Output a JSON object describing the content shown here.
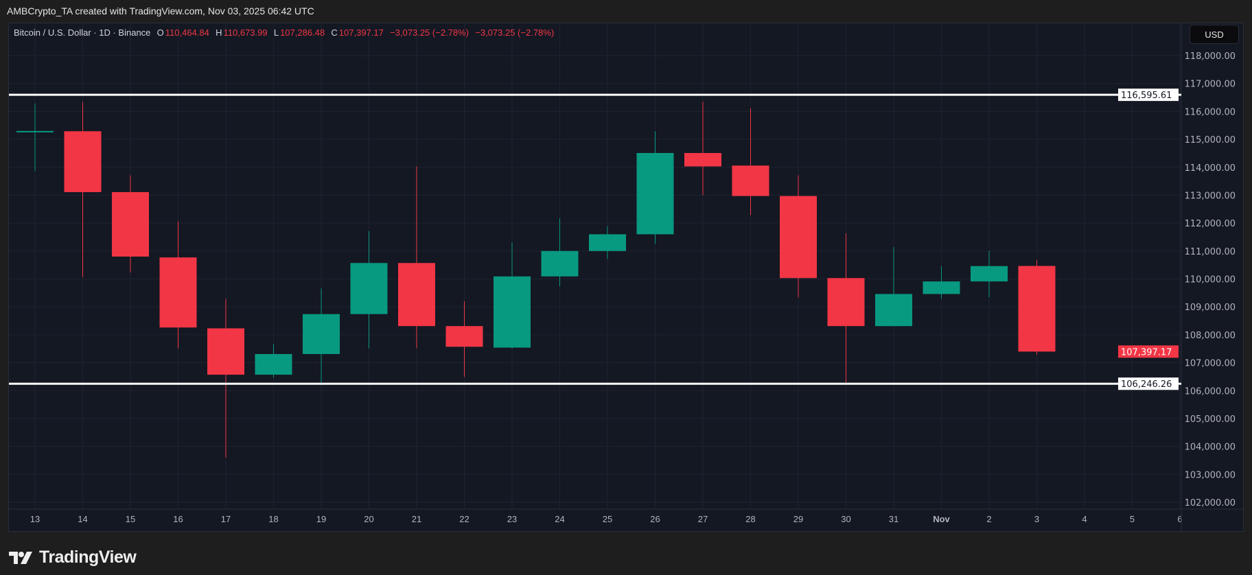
{
  "credit": "AMBCrypto_TA created with TradingView.com, Nov 03, 2025 06:42 UTC",
  "legend": {
    "symbol": "Bitcoin / U.S. Dollar · 1D · Binance",
    "o_label": "O",
    "o": "110,464.84",
    "h_label": "H",
    "h": "110,673.99",
    "l_label": "L",
    "l": "107,286.48",
    "c_label": "C",
    "c": "107,397.17",
    "change1": "−3,073.25 (−2.78%)",
    "change2": "−3,073.25 (−2.78%)"
  },
  "currency_button": "USD",
  "brand": "TradingView",
  "colors": {
    "up": "#089981",
    "down": "#f23645",
    "background": "#141823",
    "grid": "#1f2330",
    "level_line": "#ffffff"
  },
  "chart_data": {
    "type": "candlestick",
    "ylim": [
      102000,
      118000
    ],
    "y_ticks": [
      "118,000.00",
      "117,000.00",
      "116,000.00",
      "115,000.00",
      "114,000.00",
      "113,000.00",
      "112,000.00",
      "111,000.00",
      "110,000.00",
      "109,000.00",
      "108,000.00",
      "107,000.00",
      "106,000.00",
      "105,000.00",
      "104,000.00",
      "103,000.00",
      "102,000.00"
    ],
    "x_ticks": [
      "13",
      "14",
      "15",
      "16",
      "17",
      "18",
      "19",
      "20",
      "21",
      "22",
      "23",
      "24",
      "25",
      "26",
      "27",
      "28",
      "29",
      "30",
      "31",
      "Nov",
      "2",
      "3",
      "4",
      "5",
      "6"
    ],
    "candles": [
      {
        "date": "13",
        "o": 115250,
        "h": 116290,
        "l": 113860,
        "c": 115300
      },
      {
        "date": "14",
        "o": 115290,
        "h": 116340,
        "l": 110060,
        "c": 113110
      },
      {
        "date": "15",
        "o": 113110,
        "h": 113710,
        "l": 110230,
        "c": 110800
      },
      {
        "date": "16",
        "o": 110770,
        "h": 112060,
        "l": 107510,
        "c": 108260
      },
      {
        "date": "17",
        "o": 108230,
        "h": 109290,
        "l": 103600,
        "c": 106570
      },
      {
        "date": "18",
        "o": 106570,
        "h": 107660,
        "l": 106460,
        "c": 107310
      },
      {
        "date": "19",
        "o": 107310,
        "h": 109660,
        "l": 106200,
        "c": 108740
      },
      {
        "date": "20",
        "o": 108740,
        "h": 111710,
        "l": 107510,
        "c": 110570
      },
      {
        "date": "21",
        "o": 110570,
        "h": 114030,
        "l": 107510,
        "c": 108310
      },
      {
        "date": "22",
        "o": 108310,
        "h": 109200,
        "l": 106490,
        "c": 107570
      },
      {
        "date": "23",
        "o": 107540,
        "h": 111310,
        "l": 107500,
        "c": 110090
      },
      {
        "date": "24",
        "o": 110090,
        "h": 112170,
        "l": 109740,
        "c": 111000
      },
      {
        "date": "25",
        "o": 111000,
        "h": 111890,
        "l": 110710,
        "c": 111600
      },
      {
        "date": "26",
        "o": 111600,
        "h": 115290,
        "l": 111260,
        "c": 114510
      },
      {
        "date": "27",
        "o": 114510,
        "h": 116340,
        "l": 113000,
        "c": 114030
      },
      {
        "date": "28",
        "o": 114060,
        "h": 116110,
        "l": 112290,
        "c": 112970
      },
      {
        "date": "29",
        "o": 112970,
        "h": 113710,
        "l": 109340,
        "c": 110030
      },
      {
        "date": "30",
        "o": 110030,
        "h": 111630,
        "l": 106290,
        "c": 108310
      },
      {
        "date": "31",
        "o": 108310,
        "h": 111140,
        "l": 108300,
        "c": 109460
      },
      {
        "date": "Nov 1",
        "o": 109460,
        "h": 110460,
        "l": 109290,
        "c": 109910
      },
      {
        "date": "2",
        "o": 109910,
        "h": 111000,
        "l": 109340,
        "c": 110460
      },
      {
        "date": "3",
        "o": 110464.84,
        "h": 110673.99,
        "l": 107286.48,
        "c": 107397.17
      }
    ],
    "horizontal_levels": [
      {
        "value": 116595.61,
        "label": "116,595.61"
      },
      {
        "value": 106246.26,
        "label": "106,246.26"
      }
    ],
    "last_price": {
      "value": 107397.17,
      "label": "107,397.17"
    },
    "grid": true
  }
}
